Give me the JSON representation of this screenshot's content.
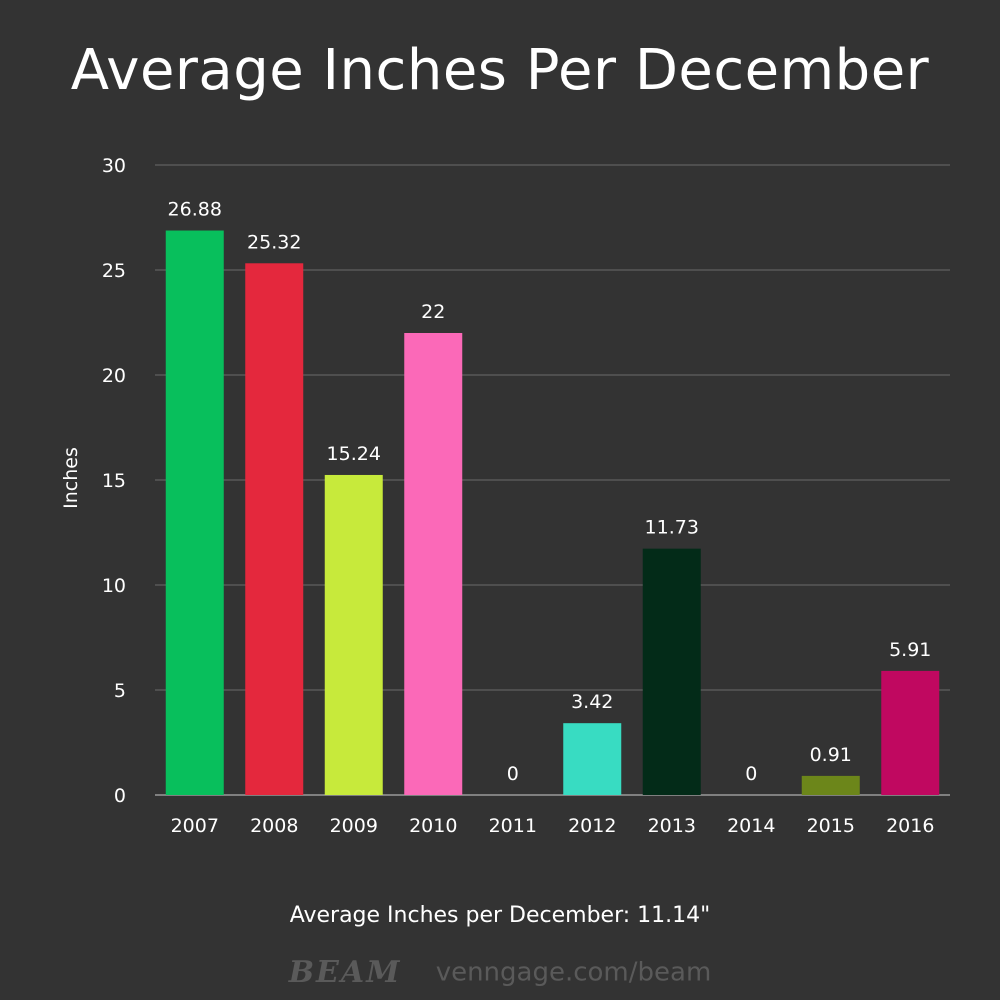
{
  "chart_data": {
    "type": "bar",
    "title": "Average Inches Per December",
    "ylabel": "Inches",
    "xlabel": "",
    "categories": [
      "2007",
      "2008",
      "2009",
      "2010",
      "2011",
      "2012",
      "2013",
      "2014",
      "2015",
      "2016"
    ],
    "values": [
      26.88,
      25.32,
      15.24,
      22,
      0,
      3.42,
      11.73,
      0,
      0.91,
      5.91
    ],
    "value_labels": [
      "26.88",
      "25.32",
      "15.24",
      "22",
      "0",
      "3.42",
      "11.73",
      "0",
      "0.91",
      "5.91"
    ],
    "colors": [
      "#08bf5c",
      "#e4283d",
      "#c7ea3b",
      "#fb69b8",
      "#555555",
      "#38dcc2",
      "#032b18",
      "#555555",
      "#6c861a",
      "#c00860"
    ],
    "ylim": [
      0,
      30
    ],
    "yticks": [
      0,
      5,
      10,
      15,
      20,
      25,
      30
    ],
    "grid": true,
    "legend": "none"
  },
  "subtitle": "Average Inches per December: 11.14\"",
  "footer": {
    "logo_text": "BEAM",
    "url": "venngage.com/beam"
  }
}
